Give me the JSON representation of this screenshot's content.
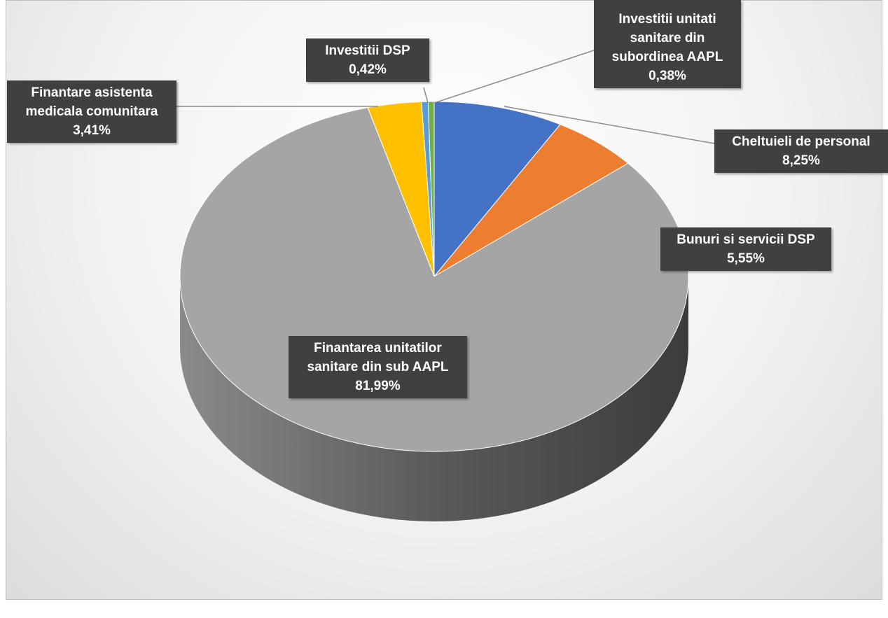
{
  "chart_data": {
    "type": "pie",
    "categories": [
      "Cheltuieli de personal",
      "Bunuri si servicii DSP",
      "Finantarea unitatilor sanitare din sub AAPL",
      "Finantare  asistenta medicala comunitara",
      "Investitii  DSP",
      "Investitii unitati sanitare din subordinea AAPL"
    ],
    "values": [
      8.25,
      5.55,
      81.99,
      3.41,
      0.42,
      0.38
    ],
    "value_labels": [
      "8,25%",
      "5,55%",
      "81,99%",
      "3,41%",
      "0,42%",
      "0,38%"
    ],
    "colors": [
      "#4472c4",
      "#ed7d31",
      "#a5a5a5",
      "#ffc000",
      "#5b9bd5",
      "#70ad47"
    ]
  }
}
